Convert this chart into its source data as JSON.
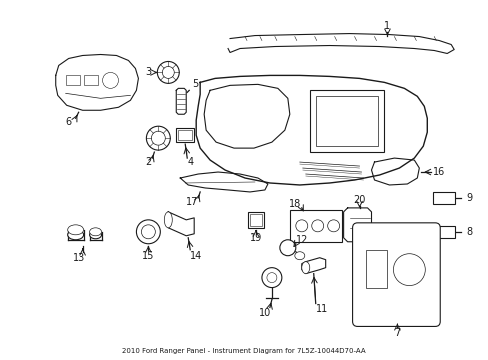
{
  "title": "2010 Ford Ranger Panel - Instrument Diagram for 7L5Z-10044D70-AA",
  "bg_color": "#ffffff",
  "line_color": "#1a1a1a",
  "fig_width": 4.89,
  "fig_height": 3.6,
  "dpi": 100
}
